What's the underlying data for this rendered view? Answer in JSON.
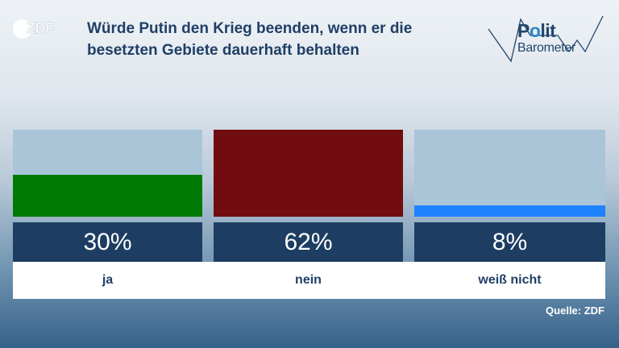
{
  "logo": {
    "text": "ZDF",
    "icon": "zdf-logo-icon"
  },
  "title": "Würde Putin den Krieg beenden, wenn er die besetzten Gebiete dauerhaft behalten",
  "brand": {
    "line1_start": "P",
    "line1_accent": "o",
    "line1_end": "lit",
    "line2": "Barometer"
  },
  "source": "Quelle: ZDF",
  "colors": {
    "ja": "#007a00",
    "nein": "#710d10",
    "weiss_nicht": "#1e82ff",
    "bar_background": "#aac4d8",
    "value_box": "#1d3e62",
    "title": "#1f3f66"
  },
  "chart_data": {
    "type": "bar",
    "title": "Würde Putin den Krieg beenden, wenn er die besetzten Gebiete dauerhaft behalten",
    "categories": [
      "ja",
      "nein",
      "weiß nicht"
    ],
    "values": [
      30,
      62,
      8
    ],
    "value_labels": [
      "30%",
      "62%",
      "8%"
    ],
    "colors": [
      "#007a00",
      "#710d10",
      "#1e82ff"
    ],
    "ylim": [
      0,
      62
    ],
    "unit": "%",
    "xlabel": "",
    "ylabel": "",
    "grid": false,
    "legend": "none"
  }
}
